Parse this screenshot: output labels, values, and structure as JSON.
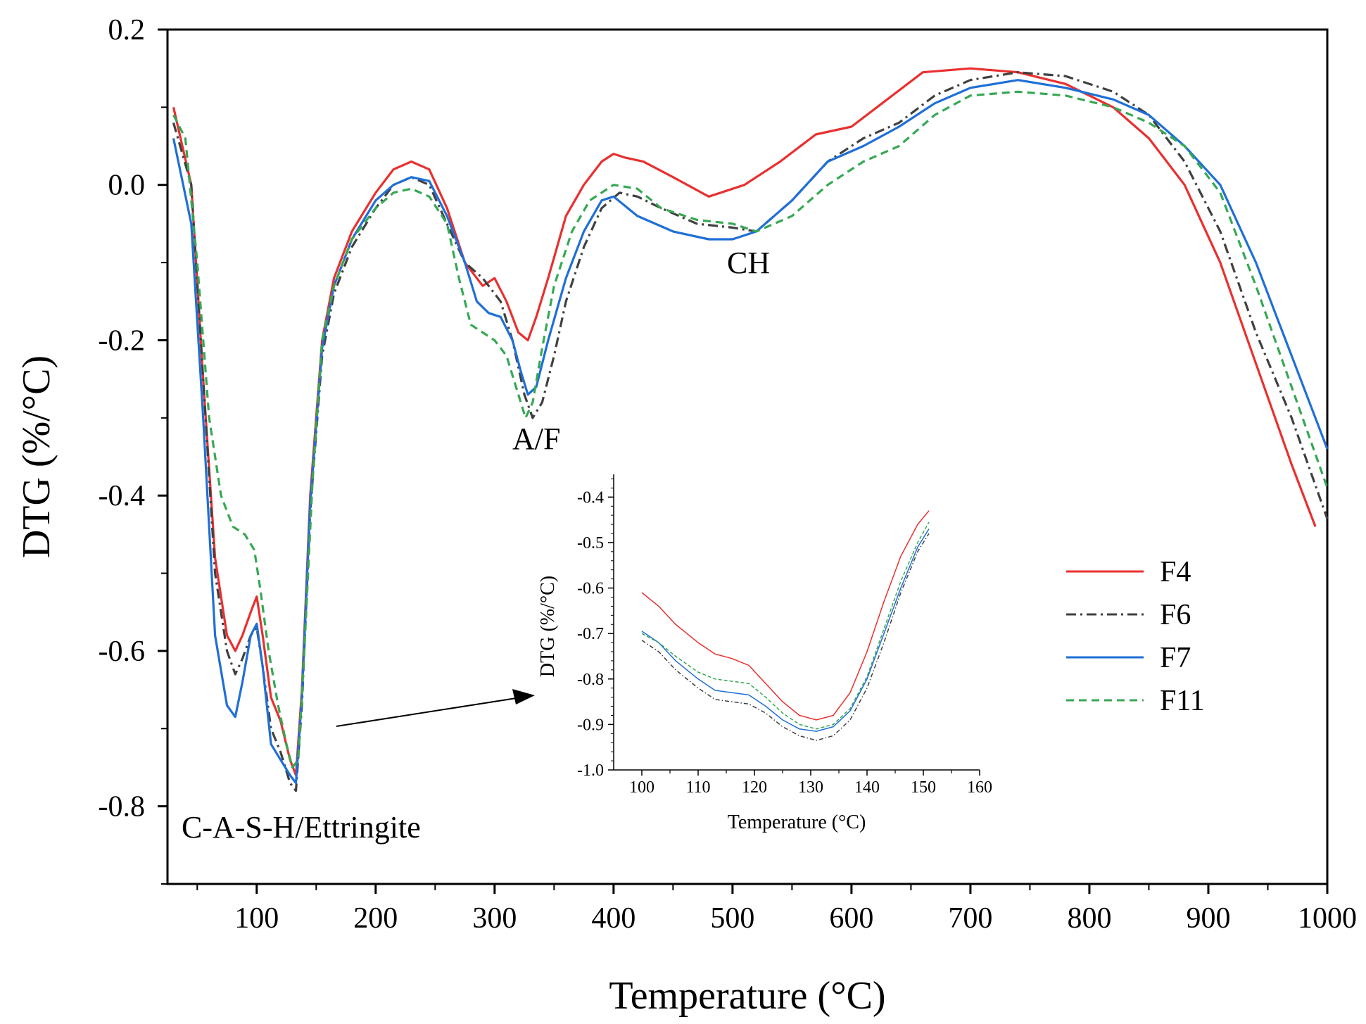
{
  "colors": {
    "F4": "#e8302f",
    "F6": "#404040",
    "F7": "#1f6fd6",
    "F11": "#36a854"
  },
  "chart_data": [
    {
      "type": "line",
      "role": "main",
      "xlabel": "Temperature (°C)",
      "ylabel": "DTG (%/°C)",
      "xlim": [
        25,
        1000
      ],
      "ylim": [
        -0.9,
        0.2
      ],
      "xticks": [
        100,
        200,
        300,
        400,
        500,
        600,
        700,
        800,
        900,
        1000
      ],
      "xtick_labels": [
        "100",
        "200",
        "300",
        "400",
        "500",
        "600",
        "700",
        "800",
        "900",
        "1000"
      ],
      "yticks": [
        0.2,
        0.0,
        -0.2,
        -0.4,
        -0.6,
        -0.8
      ],
      "ytick_labels": [
        "0.2",
        "0.0",
        "-0.2",
        "-0.4",
        "-0.6",
        "-0.8"
      ],
      "annotations": [
        {
          "text": "C-A-S-H/Ettringite",
          "x": 30,
          "y": -0.835
        },
        {
          "text": "A/F",
          "x": 315,
          "y": -0.335
        },
        {
          "text": "CH",
          "x": 492,
          "y": -0.11
        }
      ],
      "legend": {
        "position": "right",
        "entries": [
          "F4",
          "F6",
          "F7",
          "F11"
        ]
      },
      "series": [
        {
          "name": "F4",
          "style": "solid",
          "x": [
            30,
            45,
            55,
            65,
            75,
            82,
            88,
            95,
            100,
            105,
            112,
            120,
            128,
            133,
            138,
            145,
            155,
            165,
            180,
            200,
            215,
            230,
            245,
            260,
            275,
            290,
            300,
            310,
            320,
            328,
            335,
            345,
            360,
            375,
            390,
            400,
            410,
            425,
            450,
            480,
            510,
            540,
            570,
            600,
            630,
            660,
            700,
            740,
            780,
            820,
            850,
            880,
            910,
            940,
            970,
            990
          ],
          "y": [
            0.1,
            0.0,
            -0.25,
            -0.48,
            -0.58,
            -0.6,
            -0.58,
            -0.55,
            -0.53,
            -0.58,
            -0.66,
            -0.69,
            -0.74,
            -0.76,
            -0.65,
            -0.4,
            -0.2,
            -0.12,
            -0.06,
            -0.01,
            0.02,
            0.03,
            0.02,
            -0.03,
            -0.1,
            -0.13,
            -0.12,
            -0.15,
            -0.19,
            -0.2,
            -0.17,
            -0.12,
            -0.04,
            0.0,
            0.03,
            0.04,
            0.035,
            0.03,
            0.01,
            -0.015,
            0.0,
            0.03,
            0.065,
            0.075,
            0.11,
            0.145,
            0.15,
            0.145,
            0.13,
            0.1,
            0.06,
            0.0,
            -0.1,
            -0.23,
            -0.36,
            -0.44
          ]
        },
        {
          "name": "F6",
          "style": "dashdot",
          "x": [
            30,
            45,
            55,
            65,
            75,
            82,
            88,
            95,
            100,
            105,
            112,
            120,
            128,
            133,
            138,
            145,
            155,
            165,
            180,
            200,
            215,
            230,
            245,
            260,
            275,
            290,
            305,
            315,
            325,
            332,
            340,
            350,
            360,
            375,
            390,
            405,
            420,
            440,
            470,
            500,
            520,
            550,
            580,
            610,
            640,
            670,
            700,
            740,
            780,
            820,
            850,
            880,
            910,
            940,
            970,
            1000
          ],
          "y": [
            0.08,
            0.0,
            -0.25,
            -0.5,
            -0.6,
            -0.63,
            -0.61,
            -0.58,
            -0.57,
            -0.62,
            -0.7,
            -0.73,
            -0.77,
            -0.78,
            -0.67,
            -0.42,
            -0.22,
            -0.14,
            -0.08,
            -0.03,
            0.0,
            0.01,
            0.0,
            -0.05,
            -0.1,
            -0.12,
            -0.15,
            -0.2,
            -0.27,
            -0.3,
            -0.28,
            -0.22,
            -0.15,
            -0.08,
            -0.03,
            -0.01,
            -0.015,
            -0.03,
            -0.05,
            -0.055,
            -0.06,
            -0.02,
            0.03,
            0.06,
            0.08,
            0.115,
            0.135,
            0.145,
            0.14,
            0.12,
            0.09,
            0.03,
            -0.06,
            -0.19,
            -0.3,
            -0.43
          ]
        },
        {
          "name": "F7",
          "style": "solid",
          "x": [
            30,
            45,
            55,
            65,
            75,
            82,
            88,
            95,
            100,
            105,
            112,
            120,
            128,
            133,
            138,
            145,
            155,
            165,
            180,
            200,
            215,
            230,
            245,
            260,
            275,
            285,
            295,
            305,
            315,
            322,
            328,
            335,
            345,
            360,
            375,
            390,
            400,
            420,
            450,
            480,
            500,
            520,
            550,
            580,
            610,
            640,
            670,
            700,
            740,
            780,
            820,
            850,
            880,
            910,
            940,
            970,
            1000
          ],
          "y": [
            0.06,
            -0.05,
            -0.3,
            -0.58,
            -0.67,
            -0.685,
            -0.64,
            -0.58,
            -0.565,
            -0.62,
            -0.72,
            -0.74,
            -0.76,
            -0.77,
            -0.66,
            -0.41,
            -0.21,
            -0.13,
            -0.07,
            -0.02,
            0.0,
            0.01,
            0.005,
            -0.04,
            -0.1,
            -0.15,
            -0.165,
            -0.17,
            -0.2,
            -0.24,
            -0.27,
            -0.26,
            -0.2,
            -0.12,
            -0.06,
            -0.02,
            -0.015,
            -0.04,
            -0.06,
            -0.07,
            -0.07,
            -0.06,
            -0.02,
            0.03,
            0.05,
            0.075,
            0.105,
            0.125,
            0.135,
            0.125,
            0.11,
            0.09,
            0.05,
            0.0,
            -0.1,
            -0.22,
            -0.34
          ]
        },
        {
          "name": "F11",
          "style": "dashed",
          "x": [
            30,
            40,
            50,
            60,
            70,
            80,
            90,
            98,
            103,
            110,
            118,
            125,
            130,
            135,
            140,
            147,
            155,
            165,
            180,
            200,
            215,
            230,
            245,
            260,
            270,
            280,
            290,
            300,
            310,
            320,
            326,
            332,
            340,
            350,
            365,
            380,
            400,
            420,
            440,
            470,
            500,
            520,
            550,
            580,
            610,
            640,
            670,
            700,
            740,
            780,
            820,
            850,
            880,
            910,
            940,
            970,
            1000
          ],
          "y": [
            0.09,
            0.06,
            -0.1,
            -0.3,
            -0.4,
            -0.44,
            -0.45,
            -0.47,
            -0.52,
            -0.6,
            -0.67,
            -0.72,
            -0.75,
            -0.74,
            -0.6,
            -0.38,
            -0.2,
            -0.13,
            -0.07,
            -0.03,
            -0.01,
            -0.005,
            -0.015,
            -0.05,
            -0.12,
            -0.18,
            -0.19,
            -0.2,
            -0.22,
            -0.27,
            -0.3,
            -0.28,
            -0.21,
            -0.13,
            -0.06,
            -0.02,
            0.0,
            -0.005,
            -0.03,
            -0.045,
            -0.05,
            -0.06,
            -0.04,
            0.0,
            0.03,
            0.05,
            0.09,
            0.115,
            0.12,
            0.115,
            0.1,
            0.08,
            0.05,
            -0.01,
            -0.13,
            -0.26,
            -0.39
          ]
        }
      ]
    },
    {
      "type": "line",
      "role": "inset",
      "xlabel": "Temperature (°C)",
      "ylabel": "DTG (%/°C)",
      "xlim": [
        95,
        160
      ],
      "ylim": [
        -1.0,
        -0.35
      ],
      "xticks": [
        100,
        110,
        120,
        130,
        140,
        150,
        160
      ],
      "xtick_labels": [
        "100",
        "110",
        "120",
        "130",
        "140",
        "150",
        "160"
      ],
      "yticks": [
        -0.4,
        -0.5,
        -0.6,
        -0.7,
        -0.8,
        -0.9,
        -1.0
      ],
      "ytick_labels": [
        "-0.4",
        "-0.5",
        "-0.6",
        "-0.7",
        "-0.8",
        "-0.9",
        "-1.0"
      ],
      "series": [
        {
          "name": "F4",
          "style": "solid",
          "x": [
            100,
            103,
            106,
            110,
            113,
            116,
            119,
            122,
            125,
            128,
            131,
            134,
            137,
            140,
            143,
            146,
            149,
            151
          ],
          "y": [
            -0.61,
            -0.64,
            -0.68,
            -0.72,
            -0.745,
            -0.755,
            -0.77,
            -0.81,
            -0.85,
            -0.88,
            -0.89,
            -0.88,
            -0.83,
            -0.74,
            -0.63,
            -0.53,
            -0.46,
            -0.43
          ]
        },
        {
          "name": "F6",
          "style": "dashdot",
          "x": [
            100,
            103,
            106,
            110,
            113,
            116,
            119,
            122,
            125,
            128,
            131,
            134,
            137,
            140,
            143,
            146,
            149,
            151
          ],
          "y": [
            -0.715,
            -0.74,
            -0.78,
            -0.82,
            -0.845,
            -0.85,
            -0.855,
            -0.875,
            -0.905,
            -0.925,
            -0.935,
            -0.925,
            -0.89,
            -0.82,
            -0.72,
            -0.61,
            -0.52,
            -0.48
          ]
        },
        {
          "name": "F7",
          "style": "solid",
          "x": [
            100,
            103,
            106,
            110,
            113,
            116,
            119,
            122,
            125,
            128,
            131,
            134,
            137,
            140,
            143,
            146,
            149,
            151
          ],
          "y": [
            -0.695,
            -0.72,
            -0.76,
            -0.8,
            -0.825,
            -0.83,
            -0.835,
            -0.86,
            -0.89,
            -0.91,
            -0.915,
            -0.905,
            -0.87,
            -0.8,
            -0.7,
            -0.6,
            -0.51,
            -0.47
          ]
        },
        {
          "name": "F11",
          "style": "dashed",
          "x": [
            100,
            103,
            106,
            110,
            113,
            116,
            119,
            122,
            125,
            128,
            131,
            134,
            137,
            140,
            143,
            146,
            149,
            151
          ],
          "y": [
            -0.7,
            -0.72,
            -0.75,
            -0.785,
            -0.8,
            -0.805,
            -0.81,
            -0.84,
            -0.875,
            -0.9,
            -0.91,
            -0.9,
            -0.865,
            -0.795,
            -0.69,
            -0.585,
            -0.5,
            -0.455
          ]
        }
      ]
    }
  ]
}
